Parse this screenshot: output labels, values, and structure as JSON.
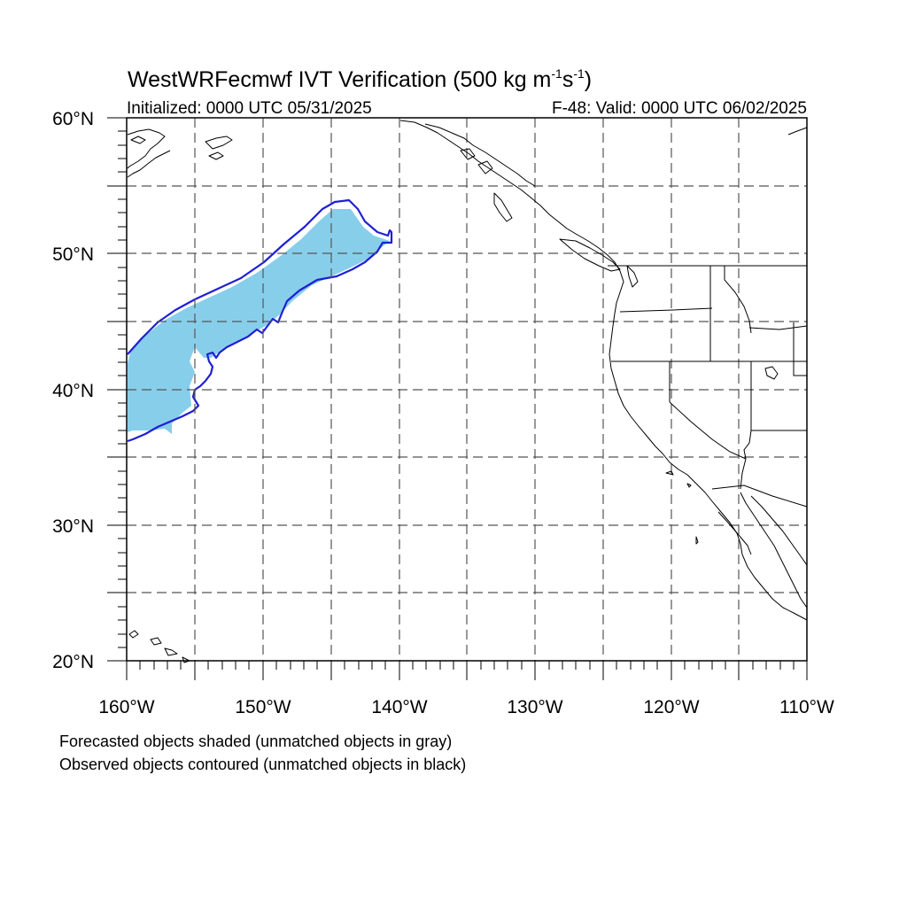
{
  "title": {
    "main": "WestWRFecmwf IVT Verification (500 kg m",
    "exp1": "-1",
    "s_unit": "s",
    "exp2": "-1",
    "close": ")"
  },
  "subtitle": {
    "left": "Initialized: 0000 UTC 05/31/2025",
    "right": "F-48: Valid: 0000 UTC 06/02/2025"
  },
  "axes": {
    "lat_labels": [
      "60°N",
      "50°N",
      "40°N",
      "30°N",
      "20°N"
    ],
    "lon_labels": [
      "160°W",
      "150°W",
      "140°W",
      "130°W",
      "120°W",
      "110°W"
    ],
    "lat_range": [
      20,
      60
    ],
    "lon_range": [
      -160,
      -110
    ],
    "grid": true,
    "grid_step_deg": 5
  },
  "legend": {
    "line1": "Forecasted objects shaded (unmatched objects in gray)",
    "line2": "Observed objects contoured (unmatched objects in black)"
  },
  "colors": {
    "forecast_fill": "#87ceeb",
    "observed_contour": "#1f1fd6",
    "coastline": "#000000",
    "grid": "#555555"
  },
  "objects": {
    "forecast_object": "matched forecast IVT object",
    "observed_object": "matched observed IVT object"
  }
}
